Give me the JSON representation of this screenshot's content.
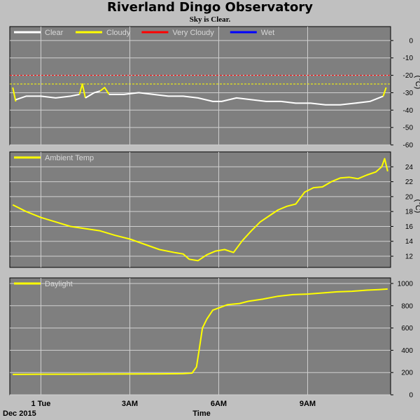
{
  "title": "Riverland Dingo Observatory",
  "subtitle": "Sky is Clear.",
  "colors": {
    "plot_bg": "#7f7f7f",
    "grid": "#d0d0d0",
    "series_yellow": "#ffff00",
    "series_white": "#ffffff",
    "series_red": "#ff0000",
    "series_blue": "#0000ff",
    "legend_text": "#d8d8d8"
  },
  "chart_data": [
    {
      "type": "line",
      "xlabel": "Time",
      "x_ticks": [
        "1 Tue",
        "3AM",
        "6AM",
        "9AM"
      ],
      "x_tick_hours": [
        0,
        3,
        6,
        9
      ],
      "x_corner_label": "Dec 2015",
      "xlim": [
        -1.05,
        11.8
      ],
      "ylim": [
        -60,
        8
      ],
      "y_ticks": [
        0,
        -10,
        -20,
        -30,
        -40,
        -50,
        -60
      ],
      "ylabel": "(°C)",
      "grid": true,
      "legend": [
        {
          "name": "Clear",
          "color": "#ffffff"
        },
        {
          "name": "Cloudy",
          "color": "#ffff00"
        },
        {
          "name": "Very Cloudy",
          "color": "#ff0000"
        },
        {
          "name": "Wet",
          "color": "#0000ff"
        }
      ],
      "reference_lines": [
        {
          "y": -20,
          "color": "#ff0000"
        },
        {
          "y": -25,
          "color": "#ffff00"
        }
      ],
      "series": [
        {
          "color": "#ffff00",
          "x": [
            -0.95,
            -0.85
          ],
          "y": [
            -27,
            -35
          ]
        },
        {
          "color": "#ffffff",
          "x": [
            -0.85,
            -0.5,
            0,
            0.5,
            1.0,
            1.3
          ],
          "y": [
            -34,
            -32,
            -32,
            -33,
            -32,
            -31
          ]
        },
        {
          "color": "#ffff00",
          "x": [
            1.3,
            1.4,
            1.5
          ],
          "y": [
            -31,
            -25,
            -33
          ]
        },
        {
          "color": "#ffffff",
          "x": [
            1.5,
            1.8,
            2.0
          ],
          "y": [
            -33,
            -30,
            -29
          ]
        },
        {
          "color": "#ffff00",
          "x": [
            2.0,
            2.15,
            2.3
          ],
          "y": [
            -29,
            -27,
            -31
          ]
        },
        {
          "color": "#ffffff",
          "x": [
            2.3,
            2.8,
            3.3,
            3.8,
            4.3,
            4.8,
            5.3,
            5.8,
            6.1,
            6.6,
            7.1,
            7.6,
            8.1,
            8.6,
            9.1,
            9.6,
            10.1,
            10.6,
            11.1,
            11.55
          ],
          "y": [
            -31,
            -31,
            -30,
            -31,
            -32,
            -32,
            -33,
            -35,
            -35,
            -33,
            -34,
            -35,
            -35,
            -36,
            -36,
            -37,
            -37,
            -36,
            -35,
            -32
          ]
        },
        {
          "color": "#ffff00",
          "x": [
            11.55,
            11.65
          ],
          "y": [
            -32,
            -27
          ]
        }
      ]
    },
    {
      "type": "line",
      "xlabel": "Time",
      "x_ticks": [
        "1 Tue",
        "3AM",
        "6AM",
        "9AM"
      ],
      "x_tick_hours": [
        0,
        3,
        6,
        9
      ],
      "xlim": [
        -1.05,
        11.8
      ],
      "ylim": [
        10.5,
        26
      ],
      "y_ticks": [
        12,
        14,
        16,
        18,
        20,
        22,
        24
      ],
      "ylabel": "(°C)",
      "grid": true,
      "legend": [
        {
          "name": "Ambient Temp",
          "color": "#ffff00"
        }
      ],
      "series": [
        {
          "name": "Ambient Temp",
          "color": "#ffff00",
          "x": [
            -0.95,
            -0.5,
            0,
            0.5,
            1.0,
            1.5,
            2.0,
            2.5,
            3.0,
            3.5,
            4.0,
            4.5,
            4.8,
            5.0,
            5.3,
            5.6,
            5.9,
            6.2,
            6.5,
            6.8,
            7.1,
            7.4,
            7.7,
            8.0,
            8.3,
            8.6,
            8.9,
            9.2,
            9.5,
            9.8,
            10.1,
            10.4,
            10.7,
            11.0,
            11.3,
            11.5,
            11.6,
            11.7
          ],
          "y": [
            18.9,
            18.0,
            17.2,
            16.6,
            16.0,
            15.7,
            15.4,
            14.8,
            14.3,
            13.6,
            12.9,
            12.5,
            12.3,
            11.6,
            11.4,
            12.2,
            12.7,
            12.9,
            12.5,
            14.1,
            15.4,
            16.6,
            17.4,
            18.2,
            18.7,
            19.0,
            20.6,
            21.2,
            21.3,
            22.0,
            22.5,
            22.6,
            22.4,
            22.9,
            23.3,
            24.0,
            25.1,
            23.4
          ]
        }
      ]
    },
    {
      "type": "line",
      "xlabel": "Time",
      "x_ticks": [
        "1 Tue",
        "3AM",
        "6AM",
        "9AM"
      ],
      "x_tick_hours": [
        0,
        3,
        6,
        9
      ],
      "xlim": [
        -1.05,
        11.8
      ],
      "ylim": [
        0,
        1050
      ],
      "y_ticks": [
        0,
        200,
        400,
        600,
        800,
        1000
      ],
      "grid": true,
      "legend": [
        {
          "name": "Daylight",
          "color": "#ffff00"
        }
      ],
      "series": [
        {
          "name": "Daylight",
          "color": "#ffff00",
          "x": [
            -0.95,
            0,
            1.0,
            2.0,
            3.0,
            4.0,
            4.8,
            5.1,
            5.25,
            5.35,
            5.45,
            5.6,
            5.8,
            6.0,
            6.3,
            6.7,
            7.0,
            7.5,
            8.0,
            8.5,
            9.0,
            9.5,
            10.0,
            10.5,
            11.0,
            11.4,
            11.7
          ],
          "y": [
            183,
            185,
            185,
            186,
            187,
            188,
            190,
            195,
            250,
            420,
            600,
            680,
            760,
            780,
            810,
            820,
            840,
            860,
            885,
            900,
            905,
            915,
            925,
            930,
            940,
            945,
            950
          ]
        }
      ]
    }
  ]
}
